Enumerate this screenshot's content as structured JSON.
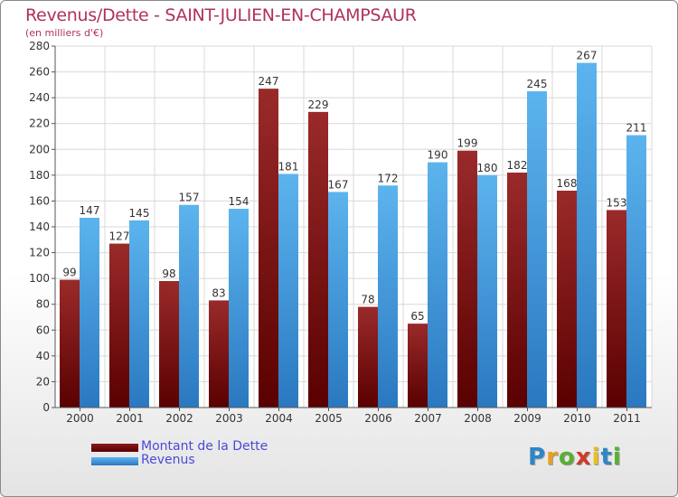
{
  "title": "Revenus/Dette - SAINT-JULIEN-EN-CHAMPSAUR",
  "subtitle": "(en milliers d'€)",
  "colors": {
    "debt": "#6e0a0a",
    "revenue": "#4ea6e6",
    "title": "#b03060",
    "legend_text": "#4a4ad8"
  },
  "logo": {
    "text": "Proxiti",
    "letters": [
      {
        "ch": "P",
        "color": "#2e86c8"
      },
      {
        "ch": "r",
        "color": "#e8a020"
      },
      {
        "ch": "o",
        "color": "#58b030"
      },
      {
        "ch": "x",
        "color": "#d03a2a"
      },
      {
        "ch": "i",
        "color": "#e8c020"
      },
      {
        "ch": "t",
        "color": "#2e86c8"
      },
      {
        "ch": "i",
        "color": "#58b030"
      }
    ]
  },
  "chart_data": {
    "type": "bar",
    "title": "Revenus/Dette - SAINT-JULIEN-EN-CHAMPSAUR",
    "subtitle": "(en milliers d'€)",
    "xlabel": "",
    "ylabel": "",
    "ylim": [
      0,
      280
    ],
    "yticks": [
      0,
      20,
      40,
      60,
      80,
      100,
      120,
      140,
      160,
      180,
      200,
      220,
      240,
      260,
      280
    ],
    "grid": true,
    "legend_position": "bottom-left",
    "categories": [
      "2000",
      "2001",
      "2002",
      "2003",
      "2004",
      "2005",
      "2006",
      "2007",
      "2008",
      "2009",
      "2010",
      "2011"
    ],
    "series": [
      {
        "name": "Montant de la Dette",
        "color": "#6e0a0a",
        "values": [
          99,
          127,
          98,
          83,
          247,
          229,
          78,
          65,
          199,
          182,
          168,
          153
        ]
      },
      {
        "name": "Revenus",
        "color": "#4ea6e6",
        "values": [
          147,
          145,
          157,
          154,
          181,
          167,
          172,
          190,
          180,
          245,
          267,
          211
        ]
      }
    ]
  }
}
